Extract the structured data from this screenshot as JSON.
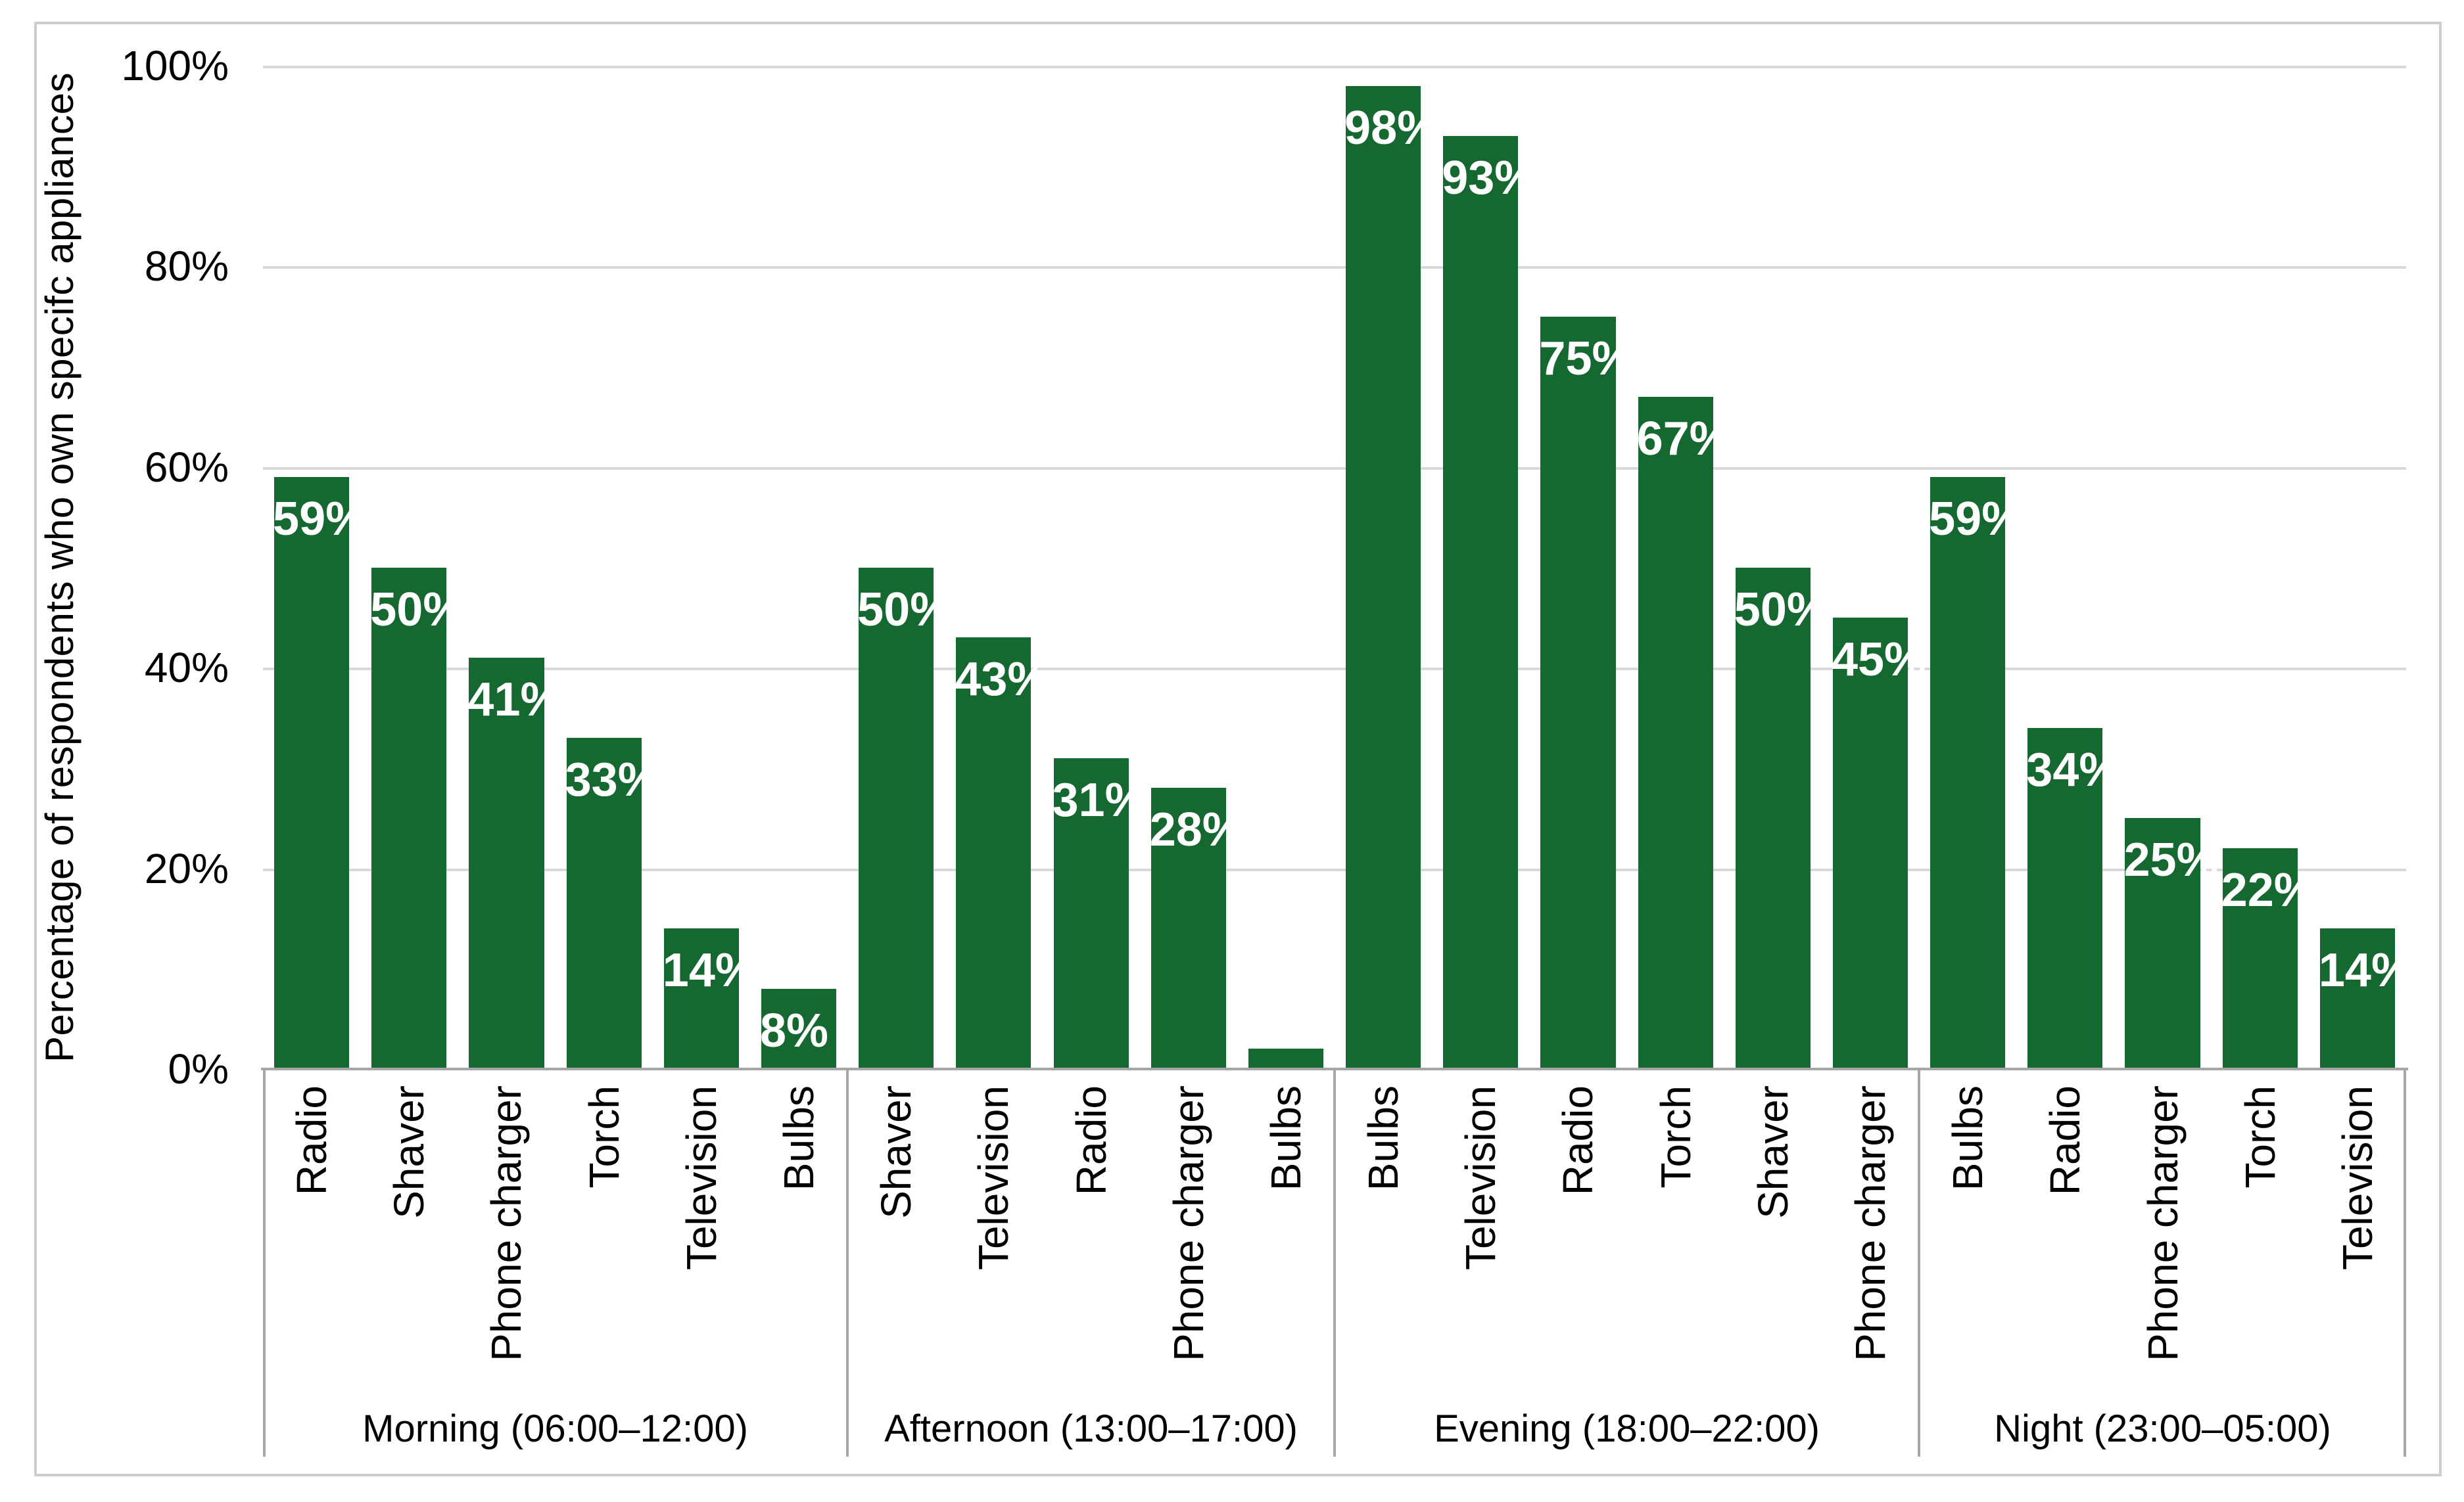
{
  "chart_data": {
    "type": "bar",
    "title": "",
    "xlabel": "",
    "ylabel": "Percentage of respondents who own specifc appliances",
    "ylim": [
      0,
      100
    ],
    "ytick_labels": [
      "0%",
      "20%",
      "40%",
      "60%",
      "80%",
      "100%"
    ],
    "ytick_values": [
      0,
      20,
      40,
      60,
      80,
      100
    ],
    "grid": true,
    "legend": "none",
    "total_bar_slots": 22,
    "groups": [
      {
        "label": "Morning (06:00–12:00)",
        "items": [
          {
            "category": "Radio",
            "value": 59,
            "data_label": "59%"
          },
          {
            "category": "Shaver",
            "value": 50,
            "data_label": "50%"
          },
          {
            "category": "Phone charger",
            "value": 41,
            "data_label": "41%"
          },
          {
            "category": "Torch",
            "value": 33,
            "data_label": "33%"
          },
          {
            "category": "Television",
            "value": 14,
            "data_label": "14%"
          },
          {
            "category": "Bulbs",
            "value": 8,
            "data_label": "8%"
          }
        ]
      },
      {
        "label": "Afternoon (13:00–17:00)",
        "items": [
          {
            "category": "Shaver",
            "value": 50,
            "data_label": "50%"
          },
          {
            "category": "Television",
            "value": 43,
            "data_label": "43%"
          },
          {
            "category": "Radio",
            "value": 31,
            "data_label": "31%"
          },
          {
            "category": "Phone charger",
            "value": 28,
            "data_label": "28%"
          },
          {
            "category": "Bulbs",
            "value": 2,
            "data_label": ""
          }
        ]
      },
      {
        "label": "Evening (18:00–22:00)",
        "items": [
          {
            "category": "Bulbs",
            "value": 98,
            "data_label": "98%"
          },
          {
            "category": "Television",
            "value": 93,
            "data_label": "93%"
          },
          {
            "category": "Radio",
            "value": 75,
            "data_label": "75%"
          },
          {
            "category": "Torch",
            "value": 67,
            "data_label": "67%"
          },
          {
            "category": "Shaver",
            "value": 50,
            "data_label": "50%"
          },
          {
            "category": "Phone charger",
            "value": 45,
            "data_label": "45%"
          }
        ]
      },
      {
        "label": "Night (23:00–05:00)",
        "items": [
          {
            "category": "Bulbs",
            "value": 59,
            "data_label": "59%"
          },
          {
            "category": "Radio",
            "value": 34,
            "data_label": "34%"
          },
          {
            "category": "Phone charger",
            "value": 25,
            "data_label": "25%"
          },
          {
            "category": "Torch",
            "value": 22,
            "data_label": "22%"
          },
          {
            "category": "Television",
            "value": 14,
            "data_label": "14%"
          }
        ]
      }
    ],
    "colors": {
      "bar": "#15682f",
      "data_label_text": "#ffffff",
      "gridline": "#d9d9d9",
      "axis_line": "#a6a6a6",
      "frame_border": "#cdcdcd",
      "text": "#000000",
      "background": "#ffffff"
    },
    "layout_hints": {
      "gridlines_horizontal_every": 20,
      "category_labels_rotated_90": true,
      "group_labels_horizontal": true,
      "data_labels_position": "inside-end"
    }
  }
}
